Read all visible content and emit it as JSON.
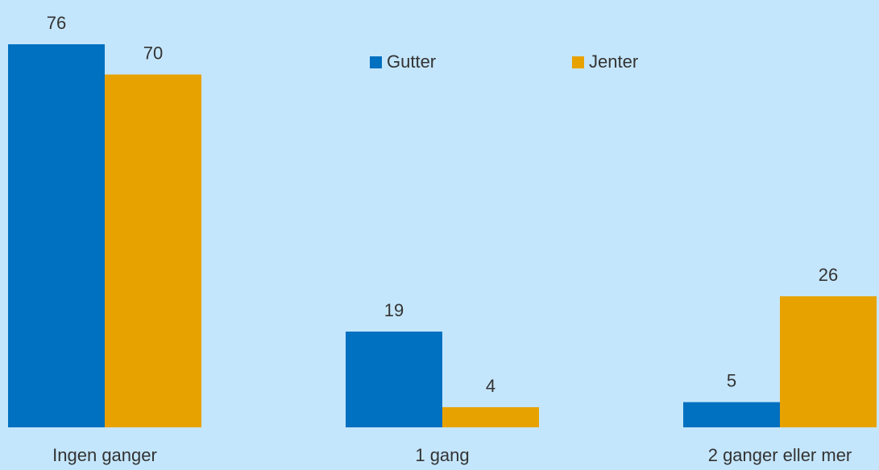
{
  "chart_data": {
    "type": "bar",
    "categories": [
      "Ingen ganger",
      "1 gang",
      "2 ganger eller mer"
    ],
    "series": [
      {
        "name": "Gutter",
        "color": "#0070c0",
        "values": [
          76,
          19,
          5
        ]
      },
      {
        "name": "Jenter",
        "color": "#e8a200",
        "values": [
          70,
          4,
          26
        ]
      }
    ],
    "legend": "top"
  }
}
